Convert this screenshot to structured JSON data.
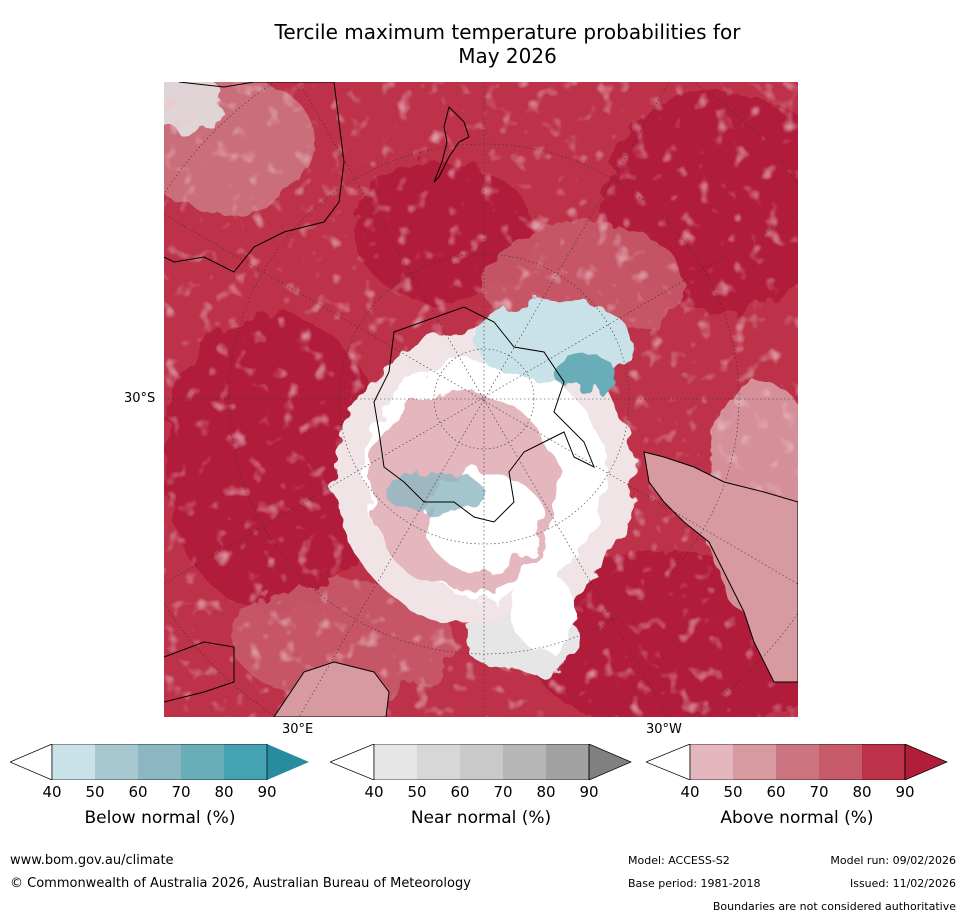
{
  "title_line1": "Tercile maximum temperature probabilities for",
  "title_line2": "May 2026",
  "map": {
    "lat_label": "30°S",
    "lon_label_e": "30°E",
    "lon_label_w": "30°W"
  },
  "legends": [
    {
      "label": "Below normal (%)",
      "ticks": [
        "40",
        "50",
        "60",
        "70",
        "80",
        "90"
      ],
      "colors": [
        "#ffffff",
        "#c9e2e8",
        "#a6c8ce",
        "#8cb6c2",
        "#69adb9",
        "#45a2b2",
        "#268c9e"
      ]
    },
    {
      "label": "Near normal (%)",
      "ticks": [
        "40",
        "50",
        "60",
        "70",
        "80",
        "90"
      ],
      "colors": [
        "#ffffff",
        "#e6e6e6",
        "#d7d7d7",
        "#c9c9c9",
        "#b7b7b7",
        "#a2a2a2",
        "#808080"
      ]
    },
    {
      "label": "Above normal (%)",
      "ticks": [
        "40",
        "50",
        "60",
        "70",
        "80",
        "90"
      ],
      "colors": [
        "#ffffff",
        "#e3b7bd",
        "#d89aa1",
        "#cc7580",
        "#c75a69",
        "#bd3249",
        "#b21e3a"
      ]
    }
  ],
  "footer": {
    "website": "www.bom.gov.au/climate",
    "copyright": "© Commonwealth of Australia 2026, Australian Bureau of Meteorology",
    "model": "Model: ACCESS-S2",
    "base_period": "Base period: 1981-2018",
    "model_run": "Model run: 09/02/2026",
    "issued": "Issued: 11/02/2026",
    "disclaimer": "Boundaries are not considered authoritative"
  }
}
